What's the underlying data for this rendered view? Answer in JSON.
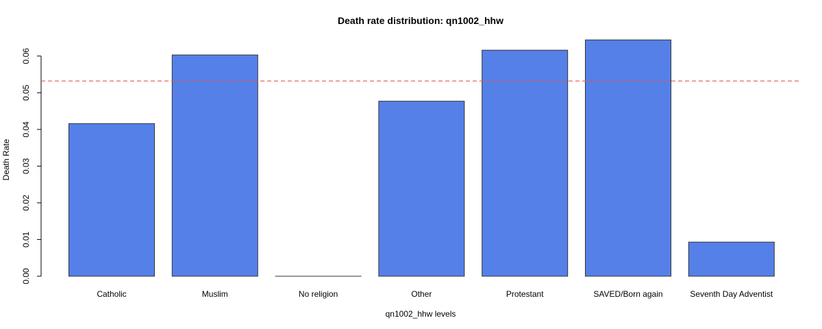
{
  "chart_data": {
    "type": "bar",
    "title": "Death rate distribution: qn1002_hhw",
    "xlabel": "qn1002_hhw levels",
    "ylabel": "Death Rate",
    "categories": [
      "Catholic",
      "Muslim",
      "No religion",
      "Other",
      "Protestant",
      "SAVED/Born again",
      "Seventh Day Adventist"
    ],
    "values": [
      0.0416,
      0.0603,
      0.0,
      0.0477,
      0.0616,
      0.0644,
      0.0093
    ],
    "ylim": [
      0,
      0.065
    ],
    "yticks": [
      "0.00",
      "0.01",
      "0.02",
      "0.03",
      "0.04",
      "0.05",
      "0.06"
    ],
    "reference_line": 0.0532,
    "grid": false,
    "colors": {
      "bar": "#5580e8",
      "reference_line": "#e8534a"
    }
  }
}
